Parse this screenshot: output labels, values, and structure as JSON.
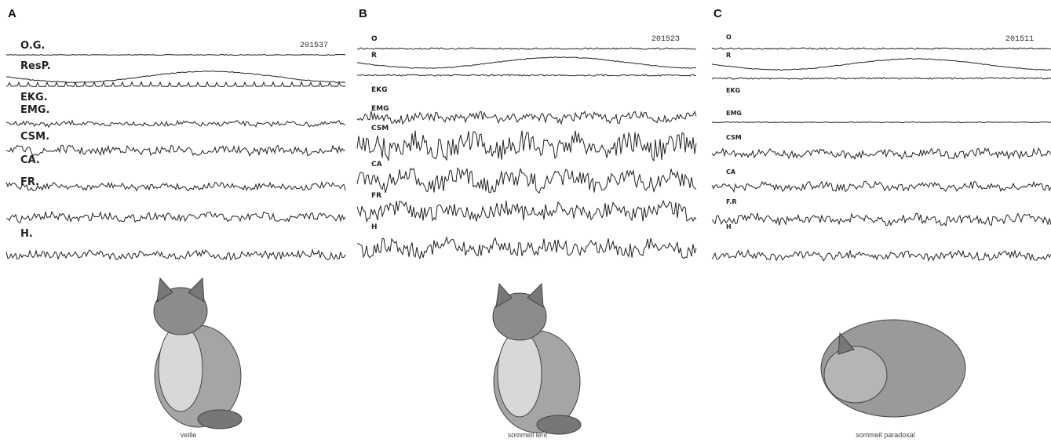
{
  "panels": [
    {
      "label": "A",
      "record": "201537",
      "channels": [
        "O.G.",
        "ResP.",
        "EKG.",
        "EMG.",
        "CSM.",
        "CA.",
        "FR.",
        "H."
      ],
      "caption": "veille"
    },
    {
      "label": "B",
      "record": "201523",
      "channels": [
        "O",
        "R",
        "EKG",
        "EMG",
        "CSM",
        "CA",
        "FR",
        "H"
      ],
      "caption": "sommeil lent"
    },
    {
      "label": "C",
      "record": "201511",
      "channels": [
        "O",
        "R",
        "EKG",
        "EMG",
        "CSM",
        "CA",
        "F.R",
        "H"
      ],
      "caption": "sommeil paradoxal"
    }
  ]
}
